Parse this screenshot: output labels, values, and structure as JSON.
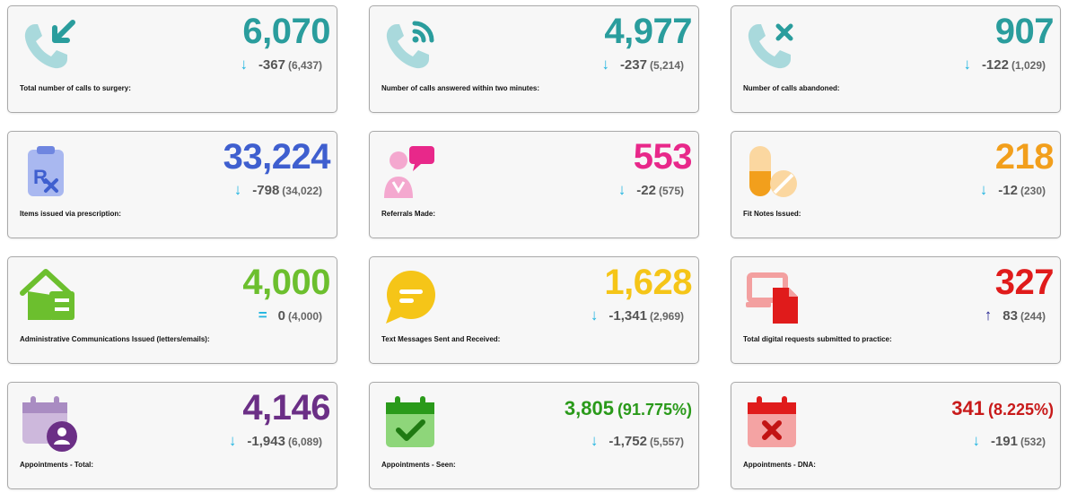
{
  "colors": {
    "teal": "#2a9d9d",
    "blue": "#3f5fcf",
    "pink": "#e8288a",
    "orange": "#f29f1c",
    "green": "#6cbf2e",
    "yellow": "#f5c518",
    "red": "#e01b1b",
    "purple": "#6b2f86",
    "dark_green": "#2a9a1a",
    "arrow_down": "#1fb4e0",
    "arrow_up": "#1a1a8c"
  },
  "cards": [
    {
      "label": "Total number of calls to surgery:",
      "value": "6,070",
      "delta": "-367",
      "previous": "(6,437)",
      "icon": "phone-incoming-icon",
      "trend": "down",
      "arrow": "↓"
    },
    {
      "label": "Number of calls answered within two minutes:",
      "value": "4,977",
      "delta": "-237",
      "previous": "(5,214)",
      "icon": "phone-answered-icon",
      "trend": "down",
      "arrow": "↓"
    },
    {
      "label": "Number of calls abandoned:",
      "value": "907",
      "delta": "-122",
      "previous": "(1,029)",
      "icon": "phone-missed-icon",
      "trend": "down",
      "arrow": "↓"
    },
    {
      "label": "Items issued via prescription:",
      "value": "33,224",
      "delta": "-798",
      "previous": "(34,022)",
      "icon": "prescription-icon",
      "trend": "down",
      "arrow": "↓"
    },
    {
      "label": "Referrals Made:",
      "value": "553",
      "delta": "-22",
      "previous": "(575)",
      "icon": "referral-icon",
      "trend": "down",
      "arrow": "↓"
    },
    {
      "label": "Fit Notes Issued:",
      "value": "218",
      "delta": "-12",
      "previous": "(230)",
      "icon": "pills-icon",
      "trend": "down",
      "arrow": "↓"
    },
    {
      "label": "Administrative Communications Issued (letters/emails):",
      "value": "4,000",
      "delta": "0",
      "previous": "(4,000)",
      "icon": "home-mail-icon",
      "trend": "equal",
      "arrow": "="
    },
    {
      "label": "Text Messages Sent and Received:",
      "value": "1,628",
      "delta": "-1,341",
      "previous": "(2,969)",
      "icon": "chat-bubble-icon",
      "trend": "down",
      "arrow": "↓"
    },
    {
      "label": "Total digital requests submitted to practice:",
      "value": "327",
      "delta": "83",
      "previous": "(244)",
      "icon": "digital-request-icon",
      "trend": "up",
      "arrow": "↑"
    },
    {
      "label": "Appointments - Total:",
      "value": "4,146",
      "delta": "-1,943",
      "previous": "(6,089)",
      "icon": "calendar-person-icon",
      "trend": "down",
      "arrow": "↓"
    },
    {
      "label": "Appointments - Seen:",
      "value": "3,805",
      "percent": "(91.775%)",
      "delta": "-1,752",
      "previous": "(5,557)",
      "icon": "calendar-check-icon",
      "trend": "down",
      "arrow": "↓"
    },
    {
      "label": "Appointments - DNA:",
      "value": "341",
      "percent": "(8.225%)",
      "delta": "-191",
      "previous": "(532)",
      "icon": "calendar-cross-icon",
      "trend": "down",
      "arrow": "↓"
    }
  ]
}
